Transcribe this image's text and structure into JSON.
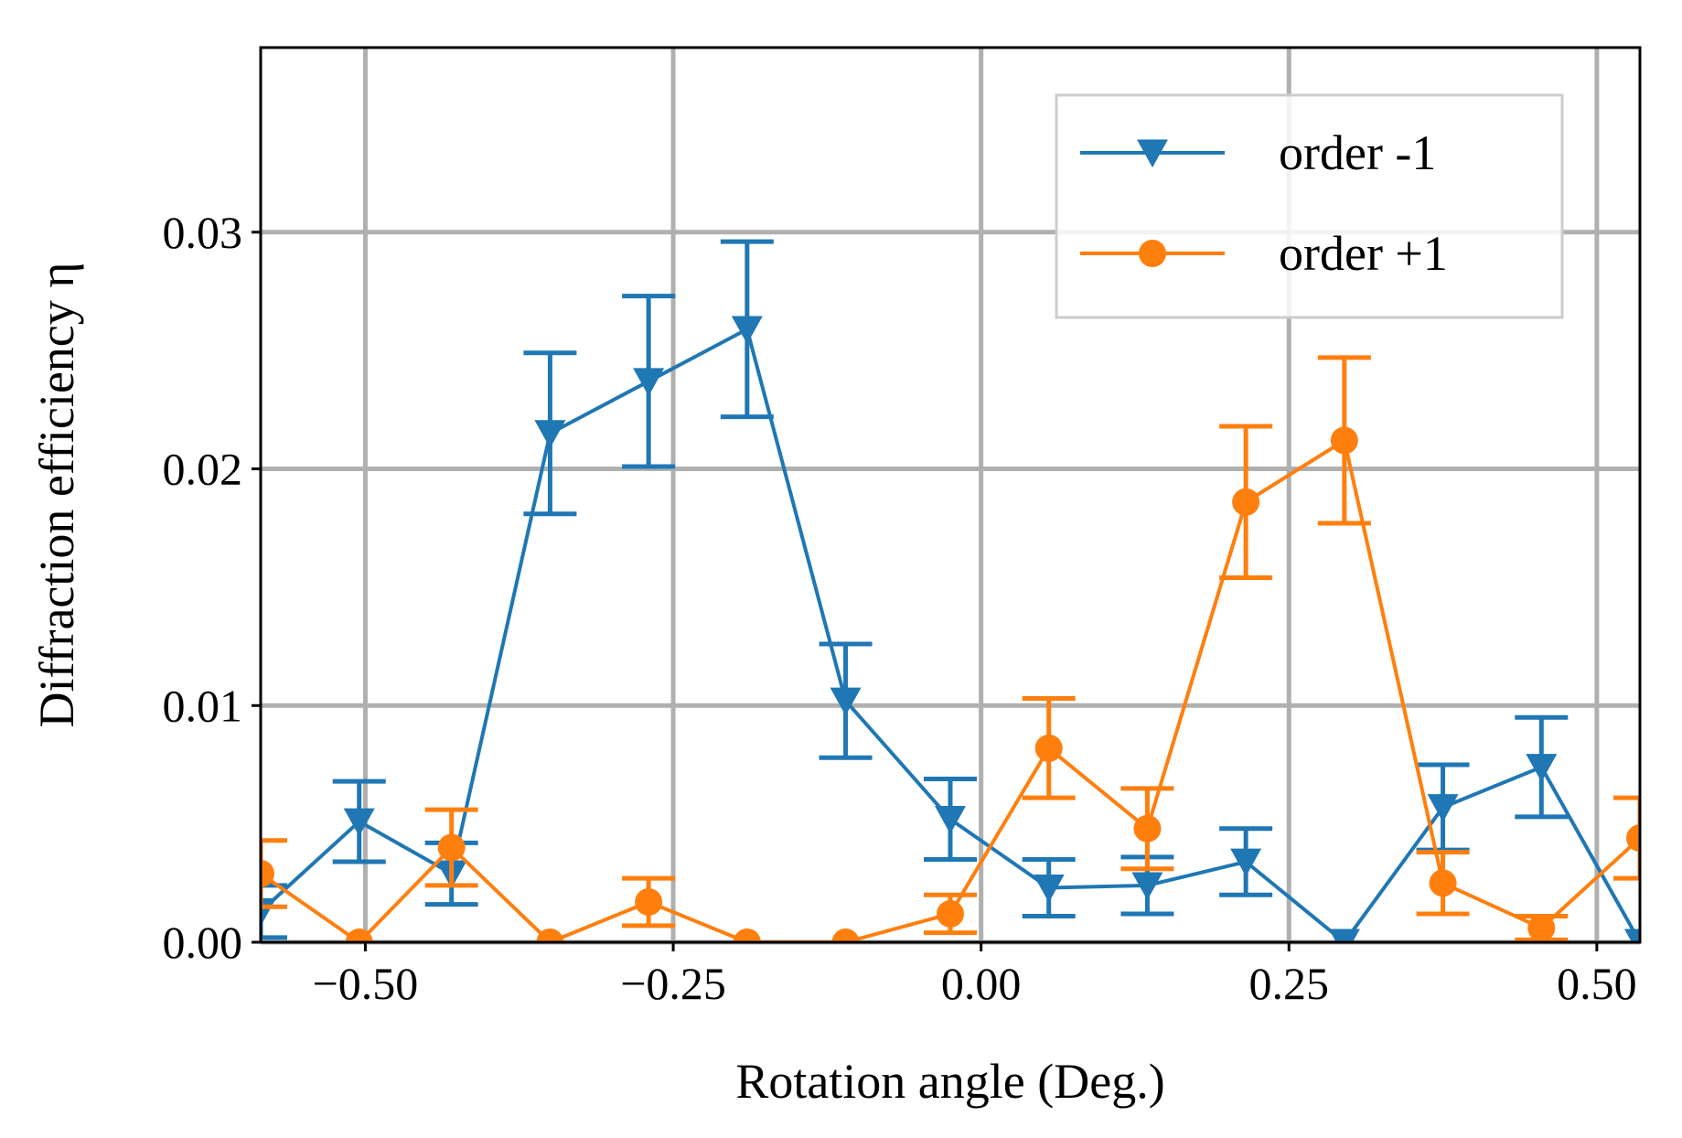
{
  "chart_data": {
    "type": "line",
    "xlabel": "Rotation angle (Deg.)",
    "ylabel": "Diffraction efficiency η",
    "xlim": [
      -0.585,
      0.535
    ],
    "ylim": [
      0,
      0.0378
    ],
    "xticks": [
      -0.5,
      -0.25,
      0.0,
      0.25,
      0.5
    ],
    "xtick_labels": [
      "−0.50",
      "−0.25",
      "0.00",
      "0.25",
      "0.50"
    ],
    "yticks": [
      0.0,
      0.01,
      0.02,
      0.03
    ],
    "ytick_labels": [
      "0.00",
      "0.01",
      "0.02",
      "0.03"
    ],
    "grid": true,
    "legend_position": "top-right",
    "series": [
      {
        "name": "order -1",
        "color": "#1f77b4",
        "marker": "triangle-down",
        "x": [
          -0.585,
          -0.505,
          -0.43,
          -0.35,
          -0.27,
          -0.19,
          -0.11,
          -0.025,
          0.055,
          0.135,
          0.215,
          0.295,
          0.375,
          0.455,
          0.535
        ],
        "y": [
          0.0013,
          0.0051,
          0.0029,
          0.0215,
          0.0237,
          0.0259,
          0.0102,
          0.0052,
          0.0023,
          0.0024,
          0.0034,
          0.0,
          0.0057,
          0.0074,
          0.0
        ],
        "err": [
          0.0011,
          0.0017,
          0.0013,
          0.0034,
          0.0036,
          0.0037,
          0.0024,
          0.0017,
          0.0012,
          0.0012,
          0.0014,
          0.0,
          0.0018,
          0.0021,
          0.0
        ]
      },
      {
        "name": "order +1",
        "color": "#ff7f0e",
        "marker": "circle",
        "x": [
          -0.585,
          -0.505,
          -0.43,
          -0.35,
          -0.27,
          -0.19,
          -0.11,
          -0.025,
          0.055,
          0.135,
          0.215,
          0.295,
          0.375,
          0.455,
          0.535
        ],
        "y": [
          0.0029,
          0.0,
          0.004,
          0.0,
          0.0017,
          0.0,
          0.0,
          0.0012,
          0.0082,
          0.0048,
          0.0186,
          0.0212,
          0.0025,
          0.0006,
          0.0044
        ],
        "err": [
          0.0014,
          0.0,
          0.0016,
          0.0,
          0.001,
          0.0,
          0.0,
          0.0008,
          0.0021,
          0.0017,
          0.0032,
          0.0035,
          0.0013,
          0.0005,
          0.0017
        ]
      }
    ]
  }
}
